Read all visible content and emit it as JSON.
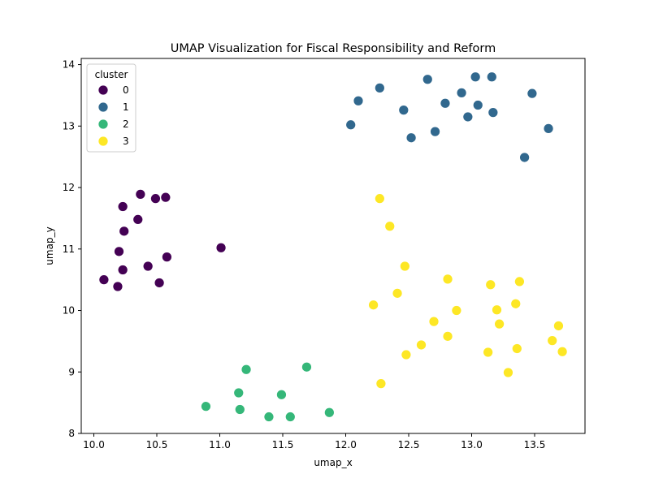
{
  "chart_data": {
    "type": "scatter",
    "title": "UMAP Visualization for Fiscal Responsibility and Reform",
    "xlabel": "umap_x",
    "ylabel": "umap_y",
    "xlim": [
      9.9,
      13.9
    ],
    "ylim": [
      8.0,
      14.1
    ],
    "xticks": [
      10.0,
      10.5,
      11.0,
      11.5,
      12.0,
      12.5,
      13.0,
      13.5
    ],
    "yticks": [
      8,
      9,
      10,
      11,
      12,
      13,
      14
    ],
    "grid": false,
    "legend": {
      "title": "cluster",
      "placement": "top-left"
    },
    "series": [
      {
        "name": "0",
        "color": "#440154",
        "points": [
          [
            10.37,
            11.89
          ],
          [
            10.23,
            11.69
          ],
          [
            10.49,
            11.82
          ],
          [
            10.57,
            11.84
          ],
          [
            10.35,
            11.48
          ],
          [
            10.24,
            11.29
          ],
          [
            10.2,
            10.96
          ],
          [
            11.01,
            11.02
          ],
          [
            10.58,
            10.87
          ],
          [
            10.43,
            10.72
          ],
          [
            10.23,
            10.66
          ],
          [
            10.08,
            10.5
          ],
          [
            10.19,
            10.39
          ],
          [
            10.52,
            10.45
          ]
        ]
      },
      {
        "name": "1",
        "color": "#31688e",
        "points": [
          [
            12.27,
            13.62
          ],
          [
            12.65,
            13.76
          ],
          [
            13.03,
            13.8
          ],
          [
            13.16,
            13.8
          ],
          [
            12.1,
            13.41
          ],
          [
            12.46,
            13.26
          ],
          [
            12.79,
            13.37
          ],
          [
            12.92,
            13.54
          ],
          [
            13.05,
            13.34
          ],
          [
            13.48,
            13.53
          ],
          [
            12.04,
            13.02
          ],
          [
            12.97,
            13.15
          ],
          [
            13.17,
            13.22
          ],
          [
            12.52,
            12.81
          ],
          [
            12.71,
            12.91
          ],
          [
            13.61,
            12.96
          ],
          [
            13.42,
            12.49
          ]
        ]
      },
      {
        "name": "2",
        "color": "#35b779",
        "points": [
          [
            11.21,
            9.04
          ],
          [
            11.69,
            9.08
          ],
          [
            11.15,
            8.66
          ],
          [
            11.49,
            8.63
          ],
          [
            10.89,
            8.44
          ],
          [
            11.16,
            8.39
          ],
          [
            11.39,
            8.27
          ],
          [
            11.56,
            8.27
          ],
          [
            11.87,
            8.34
          ]
        ]
      },
      {
        "name": "3",
        "color": "#fde725",
        "points": [
          [
            12.27,
            11.82
          ],
          [
            12.35,
            11.37
          ],
          [
            12.47,
            10.72
          ],
          [
            12.81,
            10.51
          ],
          [
            13.15,
            10.42
          ],
          [
            13.38,
            10.47
          ],
          [
            12.41,
            10.28
          ],
          [
            12.22,
            10.09
          ],
          [
            13.35,
            10.11
          ],
          [
            12.88,
            10.0
          ],
          [
            13.2,
            10.01
          ],
          [
            12.7,
            9.82
          ],
          [
            13.22,
            9.78
          ],
          [
            13.69,
            9.75
          ],
          [
            12.81,
            9.58
          ],
          [
            13.64,
            9.51
          ],
          [
            12.6,
            9.44
          ],
          [
            13.36,
            9.38
          ],
          [
            12.48,
            9.28
          ],
          [
            13.13,
            9.32
          ],
          [
            13.72,
            9.33
          ],
          [
            13.29,
            8.99
          ],
          [
            12.28,
            8.81
          ]
        ]
      }
    ]
  }
}
